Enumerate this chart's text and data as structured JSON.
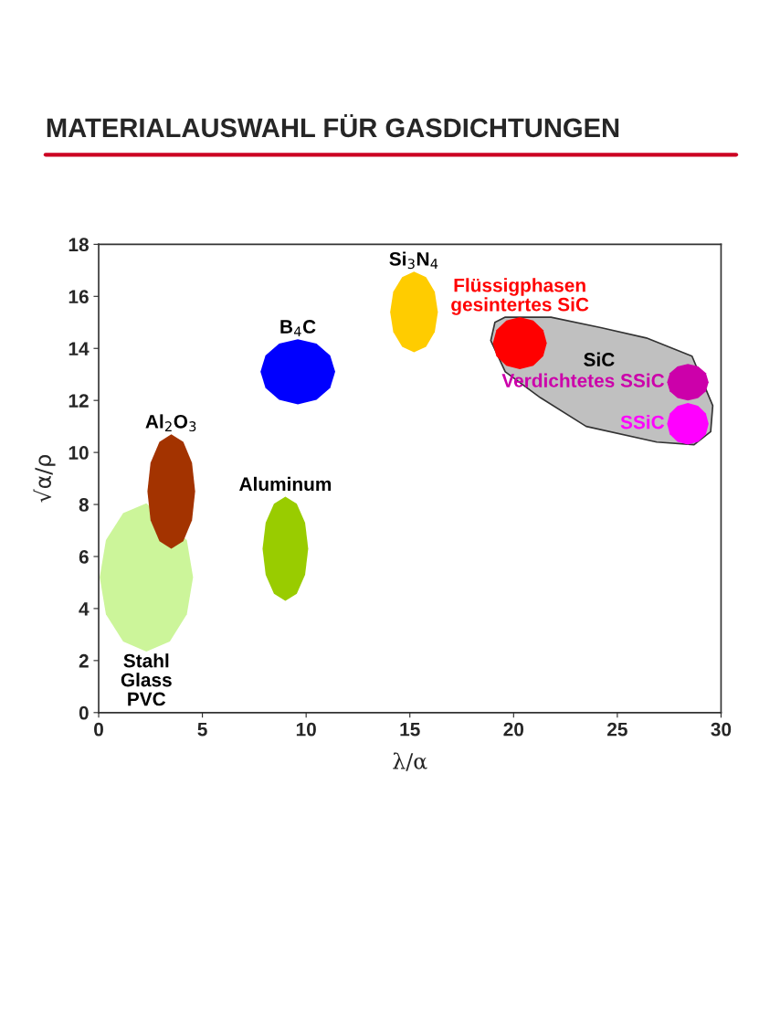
{
  "chart_data": {
    "type": "area",
    "title": "MATERIALAUSWAHL FÜR GASDICHTUNGEN",
    "xlabel": "λ/α",
    "ylabel": "√α/ρ",
    "xlim": [
      0,
      30
    ],
    "xticks": [
      0,
      5,
      10,
      15,
      20,
      25,
      30
    ],
    "ylim": [
      0,
      18
    ],
    "yticks": [
      0,
      2,
      4,
      6,
      8,
      10,
      12,
      14,
      16,
      18
    ],
    "grid": false,
    "series": [
      {
        "name": "SiC",
        "color": "#c0c0c0",
        "x": [
          19.6,
          19.1,
          18.9,
          19.6,
          21.3,
          23.5,
          26.9,
          28.7,
          29.5,
          29.6,
          28.6,
          26.4,
          24.2,
          21.8
        ],
        "values": [
          15.2,
          15.0,
          14.3,
          13.1,
          12.1,
          11.0,
          10.4,
          10.3,
          10.8,
          11.8,
          13.7,
          14.4,
          14.8,
          15.2
        ]
      },
      {
        "name": "Stahl\nGlass\nPVC",
        "color": "#ccf59a",
        "x": [
          4.55,
          4.25,
          3.43,
          2.3,
          1.18,
          0.35,
          0.05,
          0.35,
          1.18,
          2.3,
          3.43,
          4.25
        ],
        "values": [
          5.2,
          6.63,
          null,
          8.05,
          7.67,
          6.63,
          5.2,
          3.78,
          2.73,
          2.35,
          2.73,
          3.78
        ]
      },
      {
        "name": "Al$_{2}$O$_{3}$",
        "color": "#a33300",
        "x": [
          4.65,
          4.5,
          4.08,
          3.5,
          2.93,
          2.5,
          2.35,
          2.5,
          2.93,
          3.5,
          4.08,
          4.5
        ],
        "values": [
          8.5,
          9.6,
          10.41,
          10.7,
          10.41,
          9.6,
          8.5,
          7.4,
          6.59,
          6.3,
          6.59,
          7.4
        ]
      },
      {
        "name": "Aluminum",
        "color": "#99cc00",
        "x": [
          10.1,
          9.95,
          9.55,
          9.0,
          8.45,
          8.05,
          7.9,
          8.05,
          8.45,
          9.0,
          9.55,
          9.95
        ],
        "values": [
          6.3,
          7.3,
          8.03,
          8.3,
          8.03,
          7.3,
          6.3,
          5.3,
          4.57,
          4.3,
          4.57,
          5.3
        ]
      },
      {
        "name": "B$_{4}$C",
        "color": "#0000ff",
        "x": [
          11.4,
          11.16,
          10.5,
          9.6,
          8.7,
          8.04,
          7.8,
          8.04,
          8.7,
          9.6,
          10.5,
          11.16
        ],
        "values": [
          13.1,
          13.73,
          14.18,
          14.35,
          14.18,
          13.73,
          13.1,
          12.48,
          12.02,
          11.85,
          12.02,
          12.48
        ]
      },
      {
        "name": "Si$_{3}$N$_{4}$",
        "color": "#ffcc00",
        "x": [
          16.35,
          16.2,
          15.78,
          15.2,
          14.63,
          14.2,
          14.05,
          14.2,
          14.63,
          15.2,
          15.78,
          16.2
        ],
        "values": [
          15.4,
          16.18,
          16.74,
          16.95,
          16.74,
          16.18,
          15.4,
          14.63,
          14.06,
          13.85,
          14.06,
          14.63
        ]
      },
      {
        "name": "Flüssigphasen\ngesintertes SiC",
        "color": "#ff0000",
        "x": [
          21.6,
          21.43,
          20.95,
          20.3,
          19.65,
          19.17,
          19.0,
          19.17,
          19.65,
          20.3,
          20.95,
          21.43
        ],
        "values": [
          14.2,
          14.7,
          15.07,
          15.2,
          15.07,
          14.7,
          14.2,
          13.7,
          13.33,
          13.2,
          13.33,
          13.7
        ]
      },
      {
        "name": "Verdichtetes SSiC",
        "color": "#cc00aa",
        "x": [
          29.4,
          29.27,
          28.9,
          28.4,
          27.9,
          27.53,
          27.4,
          27.53,
          27.9,
          28.4,
          28.9,
          29.27
        ],
        "values": [
          12.7,
          13.05,
          13.31,
          13.4,
          13.31,
          13.05,
          12.7,
          12.35,
          12.09,
          12.0,
          12.09,
          12.35
        ]
      },
      {
        "name": "SSiC",
        "color": "#ff00ff",
        "x": [
          29.4,
          29.27,
          28.9,
          28.4,
          27.9,
          27.53,
          27.4,
          27.53,
          27.9,
          28.4,
          28.9,
          29.27
        ],
        "values": [
          11.1,
          11.5,
          11.79,
          11.9,
          11.79,
          11.5,
          11.1,
          10.7,
          10.41,
          10.3,
          10.41,
          10.7
        ]
      }
    ]
  }
}
